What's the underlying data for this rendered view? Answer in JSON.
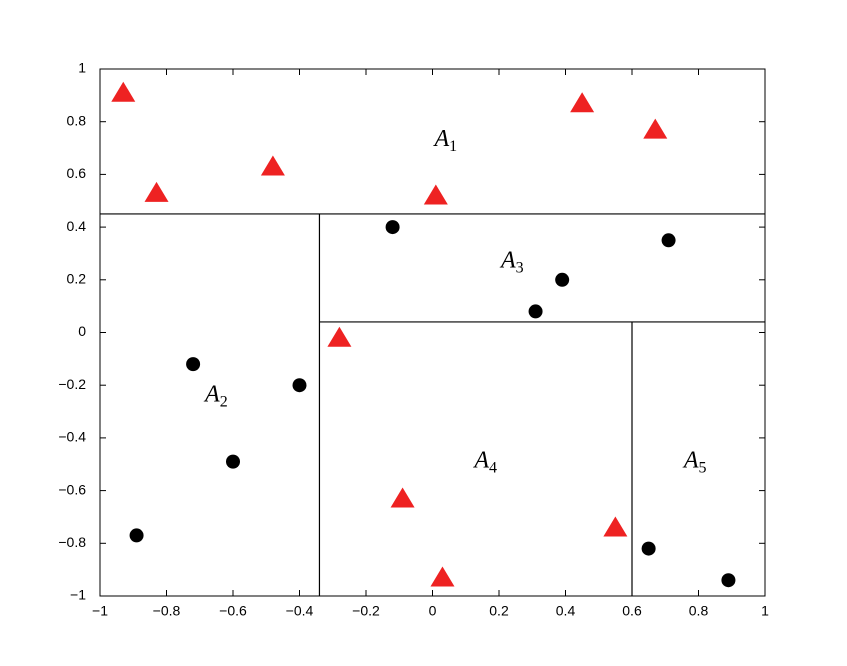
{
  "chart_data": {
    "type": "scatter",
    "xlim": [
      -1,
      1
    ],
    "ylim": [
      -1,
      1
    ],
    "xticks": [
      {
        "value": -1,
        "label": "−1"
      },
      {
        "value": -0.8,
        "label": "−0.8"
      },
      {
        "value": -0.6,
        "label": "−0.6"
      },
      {
        "value": -0.4,
        "label": "−0.4"
      },
      {
        "value": -0.2,
        "label": "−0.2"
      },
      0,
      0.2,
      0.4,
      0.6,
      0.8,
      1
    ],
    "yticks": [
      {
        "value": -1,
        "label": "−1"
      },
      {
        "value": -0.8,
        "label": "−0.8"
      },
      {
        "value": -0.6,
        "label": "−0.6"
      },
      {
        "value": -0.4,
        "label": "−0.4"
      },
      {
        "value": -0.2,
        "label": "−0.2"
      },
      0,
      0.2,
      0.4,
      0.6,
      0.8,
      1
    ],
    "series": [
      {
        "color": "#ee2222",
        "marker": "triangle",
        "x": [
          -0.93,
          -0.83,
          -0.48,
          0.01,
          0.45,
          0.67,
          -0.28,
          -0.09,
          0.03,
          0.55
        ],
        "values": [
          0.91,
          0.53,
          0.63,
          0.52,
          0.87,
          0.77,
          -0.02,
          -0.63,
          -0.93,
          -0.74
        ]
      },
      {
        "color": "#000000",
        "marker": "circle",
        "x": [
          -0.12,
          0.39,
          0.31,
          0.71,
          -0.72,
          -0.4,
          -0.6,
          -0.89,
          0.65,
          0.89
        ],
        "values": [
          0.4,
          0.2,
          0.08,
          0.35,
          -0.12,
          -0.2,
          -0.49,
          -0.77,
          -0.82,
          -0.94
        ]
      }
    ],
    "partition_lines": [
      {
        "x": [
          -1,
          1
        ],
        "y": [
          0.45,
          0.45
        ]
      },
      {
        "x": [
          -0.34,
          -0.34
        ],
        "y": [
          -1,
          0.45
        ]
      },
      {
        "x": [
          -0.34,
          1
        ],
        "y": [
          0.04,
          0.04
        ]
      },
      {
        "x": [
          0.6,
          0.6
        ],
        "y": [
          -1,
          0.04
        ]
      }
    ],
    "annotations": [
      {
        "text": "A",
        "sub": "1",
        "x": 0.04,
        "y": 0.73
      },
      {
        "text": "A",
        "sub": "2",
        "x": -0.65,
        "y": -0.24
      },
      {
        "text": "A",
        "sub": "3",
        "x": 0.24,
        "y": 0.27
      },
      {
        "text": "A",
        "sub": "4",
        "x": 0.16,
        "y": -0.49
      },
      {
        "text": "A",
        "sub": "5",
        "x": 0.79,
        "y": -0.49
      }
    ]
  }
}
